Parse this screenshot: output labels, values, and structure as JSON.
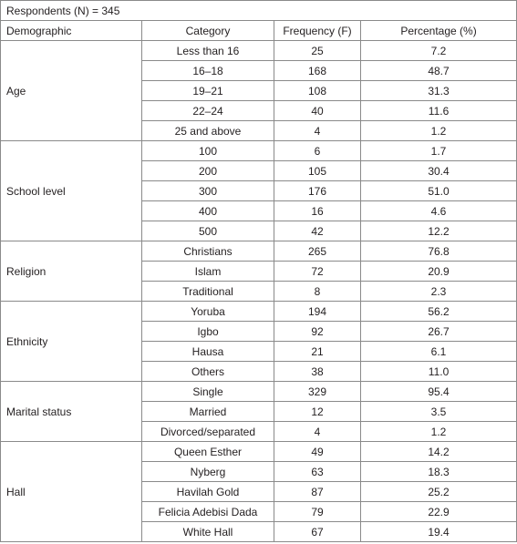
{
  "table": {
    "title": "Respondents (N) = 345",
    "header": [
      "Demographic",
      "Category",
      "Frequency (F)",
      "Percentage (%)"
    ],
    "groups": [
      {
        "demographic": "Age",
        "rows": [
          [
            "Less than 16",
            "25",
            "7.2"
          ],
          [
            "16–18",
            "168",
            "48.7"
          ],
          [
            "19–21",
            "108",
            "31.3"
          ],
          [
            "22–24",
            "40",
            "11.6"
          ],
          [
            "25 and above",
            "4",
            "1.2"
          ]
        ]
      },
      {
        "demographic": "School level",
        "rows": [
          [
            "100",
            "6",
            "1.7"
          ],
          [
            "200",
            "105",
            "30.4"
          ],
          [
            "300",
            "176",
            "51.0"
          ],
          [
            "400",
            "16",
            "4.6"
          ],
          [
            "500",
            "42",
            "12.2"
          ]
        ]
      },
      {
        "demographic": "Religion",
        "rows": [
          [
            "Christians",
            "265",
            "76.8"
          ],
          [
            "Islam",
            "72",
            "20.9"
          ],
          [
            "Traditional",
            "8",
            "2.3"
          ]
        ]
      },
      {
        "demographic": "Ethnicity",
        "rows": [
          [
            "Yoruba",
            "194",
            "56.2"
          ],
          [
            "Igbo",
            "92",
            "26.7"
          ],
          [
            "Hausa",
            "21",
            "6.1"
          ],
          [
            "Others",
            "38",
            "11.0"
          ]
        ]
      },
      {
        "demographic": "Marital status",
        "rows": [
          [
            "Single",
            "329",
            "95.4"
          ],
          [
            "Married",
            "12",
            "3.5"
          ],
          [
            "Divorced/separated",
            "4",
            "1.2"
          ]
        ]
      },
      {
        "demographic": "Hall",
        "rows": [
          [
            "Queen Esther",
            "49",
            "14.2"
          ],
          [
            "Nyberg",
            "63",
            "18.3"
          ],
          [
            "Havilah Gold",
            "87",
            "25.2"
          ],
          [
            "Felicia Adebisi Dada",
            "79",
            "22.9"
          ],
          [
            "White Hall",
            "67",
            "19.4"
          ]
        ]
      }
    ]
  }
}
